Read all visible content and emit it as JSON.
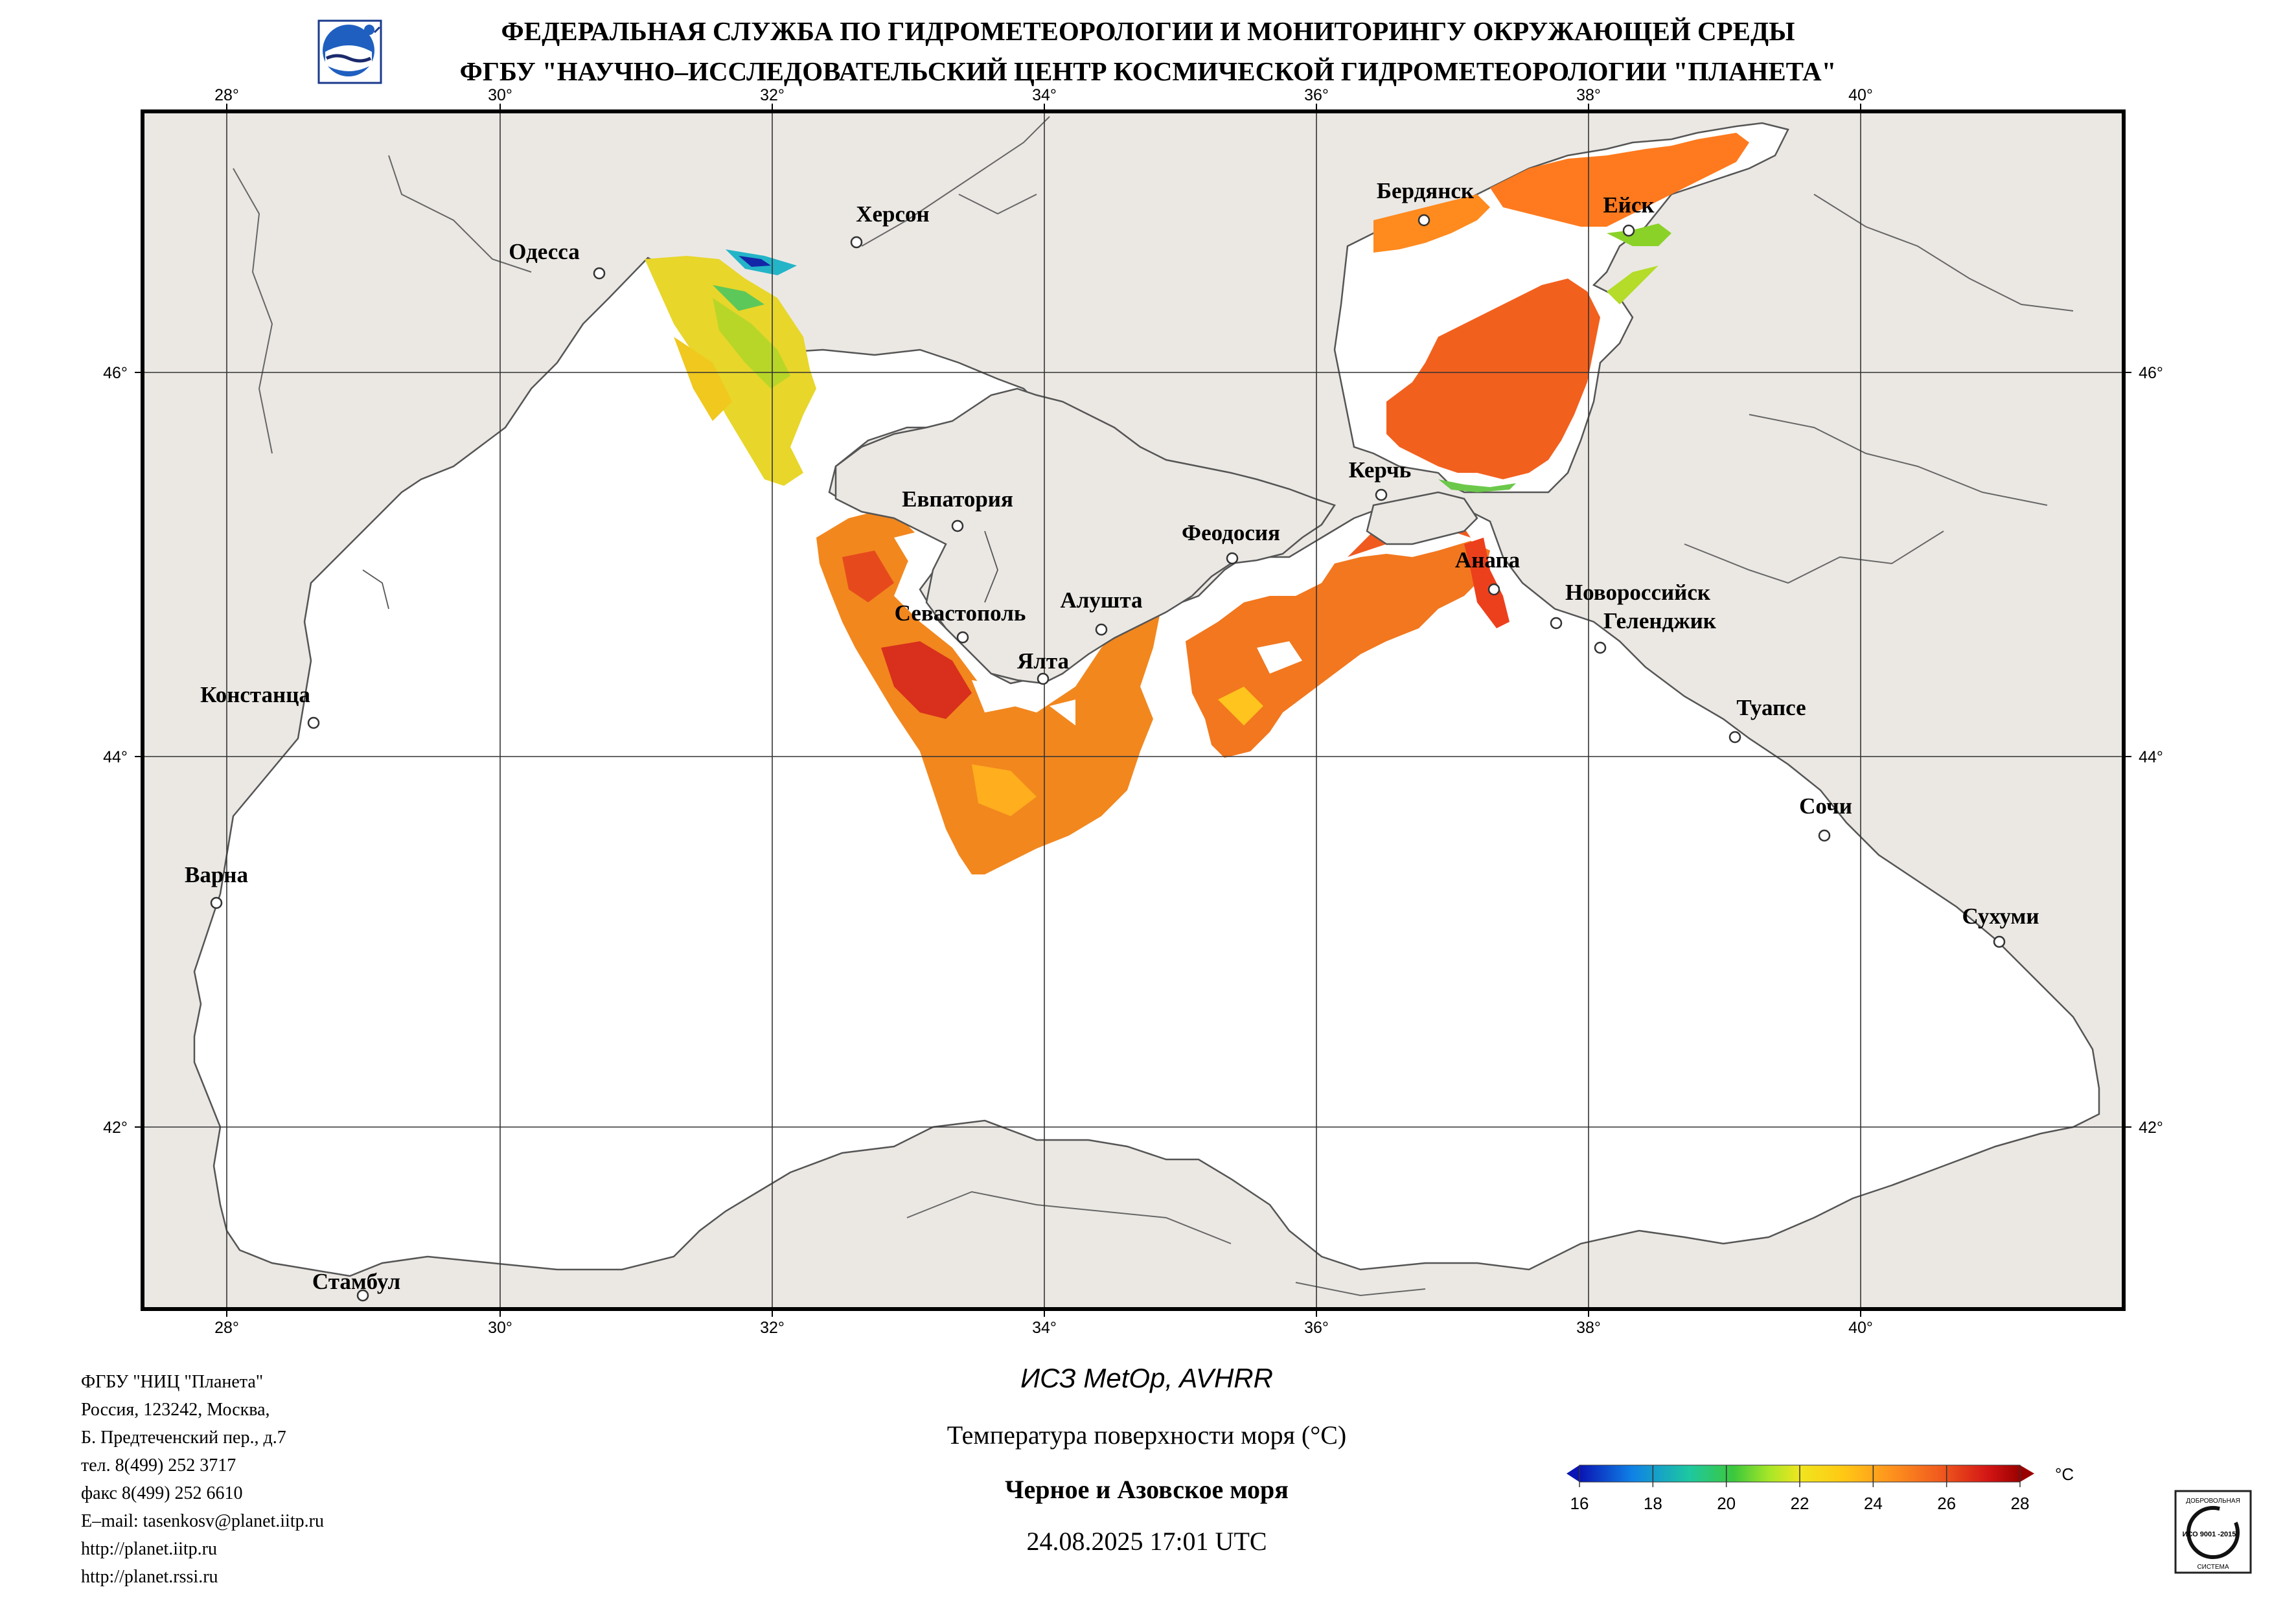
{
  "header": {
    "line1": "ФЕДЕРАЛЬНАЯ СЛУЖБА ПО ГИДРОМЕТЕОРОЛОГИИ И МОНИТОРИНГУ ОКРУЖАЮЩЕЙ СРЕДЫ",
    "line2": "ФГБУ \"НАУЧНО–ИССЛЕДОВАТЕЛЬСКИЙ ЦЕНТР КОСМИЧЕСКОЙ ГИДРОМЕТЕОРОЛОГИИ \"ПЛАНЕТА\"",
    "logo_icon": "planeta-logo-icon"
  },
  "map": {
    "lon_ticks": [
      "28°",
      "30°",
      "32°",
      "34°",
      "36°",
      "38°",
      "40°"
    ],
    "lat_ticks": [
      "46°",
      "44°",
      "42°"
    ],
    "colors": {
      "land": "#ebe8e4",
      "sea": "#ffffff",
      "coast": "#555555",
      "grid": "#333333"
    },
    "cities": [
      {
        "id": "odessa",
        "name": "Одесса"
      },
      {
        "id": "kherson",
        "name": "Херсон"
      },
      {
        "id": "berdyansk",
        "name": "Бердянск"
      },
      {
        "id": "yeysk",
        "name": "Ейск"
      },
      {
        "id": "evpatoriya",
        "name": "Евпатория"
      },
      {
        "id": "feodosiya",
        "name": "Феодосия"
      },
      {
        "id": "kerch",
        "name": "Керчь"
      },
      {
        "id": "anapa",
        "name": "Анапа"
      },
      {
        "id": "novorossiysk",
        "name": "Новороссийск"
      },
      {
        "id": "gelendzhik",
        "name": "Геленджик"
      },
      {
        "id": "sevastopol",
        "name": "Севастополь"
      },
      {
        "id": "alushta",
        "name": "Алушта"
      },
      {
        "id": "yalta",
        "name": "Ялта"
      },
      {
        "id": "konstanca",
        "name": "Констанца"
      },
      {
        "id": "tuapse",
        "name": "Туапсе"
      },
      {
        "id": "sochi",
        "name": "Сочи"
      },
      {
        "id": "varna",
        "name": "Варна"
      },
      {
        "id": "sukhumi",
        "name": "Сухуми"
      },
      {
        "id": "stambul",
        "name": "Стамбул"
      }
    ]
  },
  "footer_info": {
    "lines": [
      "ФГБУ \"НИЦ \"Планета\"",
      "Россия, 123242, Москва,",
      "Б. Предтеченский пер., д.7",
      "тел. 8(499) 252 3717",
      "факс 8(499) 252 6610",
      "E–mail: tasenkosv@planet.iitp.ru",
      "http://planet.iitp.ru",
      "http://planet.rssi.ru"
    ]
  },
  "caption": {
    "satellite": "ИСЗ MetOp, AVHRR",
    "product": "Температура поверхности моря (°С)",
    "region": "Черное и Азовское моря",
    "datetime": "24.08.2025 17:01 UTC"
  },
  "colorbar": {
    "unit": "°C",
    "ticks": [
      "16",
      "18",
      "20",
      "22",
      "24",
      "26",
      "28"
    ],
    "min": 16,
    "max": 28,
    "colors": [
      "#0a14b4",
      "#0f82e6",
      "#1ec8a0",
      "#3cc83c",
      "#a6e628",
      "#f0e61e",
      "#ffc814",
      "#ff961e",
      "#f05a1e",
      "#d21414",
      "#9b0000"
    ]
  },
  "badge": {
    "top": "ДОБРОВОЛЬНАЯ",
    "iso": "ИСО 9001 -2015",
    "bottom": "СИСТЕМА",
    "icon": "iso-certificate-icon"
  }
}
